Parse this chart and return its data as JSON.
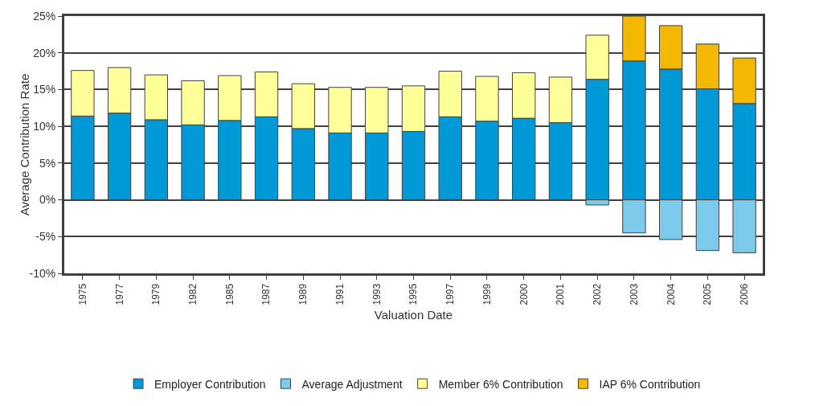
{
  "chart_data": {
    "type": "bar",
    "stacked": true,
    "xlabel": "Valuation Date",
    "ylabel": "Average Contribution Rate",
    "categories": [
      "1975",
      "1977",
      "1979",
      "1982",
      "1985",
      "1987",
      "1989",
      "1991",
      "1993",
      "1995",
      "1997",
      "1999",
      "2000",
      "2001",
      "2002",
      "2003",
      "2004",
      "2005",
      "2006"
    ],
    "series": [
      {
        "name": "Employer Contribution",
        "color": "#0099d8",
        "values": [
          11.4,
          11.8,
          10.9,
          10.2,
          10.8,
          11.3,
          9.7,
          9.1,
          9.1,
          9.3,
          11.3,
          10.7,
          11.1,
          10.5,
          16.4,
          18.9,
          17.8,
          15.1,
          13.1
        ]
      },
      {
        "name": "Average Adjustment",
        "color": "#7ccbec",
        "values": [
          null,
          null,
          null,
          null,
          null,
          null,
          null,
          null,
          null,
          null,
          null,
          null,
          null,
          null,
          -0.7,
          -4.5,
          -5.4,
          -6.9,
          -7.2
        ]
      },
      {
        "name": "Member 6% Contribution",
        "color": "#ffff99",
        "values": [
          6.2,
          6.2,
          6.1,
          6.0,
          6.1,
          6.1,
          6.1,
          6.2,
          6.2,
          6.2,
          6.2,
          6.1,
          6.2,
          6.2,
          6.0,
          null,
          null,
          null,
          null
        ]
      },
      {
        "name": "IAP 6% Contribution",
        "color": "#f5b800",
        "values": [
          null,
          null,
          null,
          null,
          null,
          null,
          null,
          null,
          null,
          null,
          null,
          null,
          null,
          null,
          null,
          6.1,
          5.9,
          6.1,
          6.2
        ]
      }
    ],
    "ylim": [
      -10,
      25
    ],
    "yticks": [
      {
        "value": -10,
        "label": "-10%"
      },
      {
        "value": -5,
        "label": "-5%"
      },
      {
        "value": 0,
        "label": "0%"
      },
      {
        "value": 5,
        "label": "5%"
      },
      {
        "value": 10,
        "label": "10%"
      },
      {
        "value": 15,
        "label": "15%"
      },
      {
        "value": 20,
        "label": "20%"
      },
      {
        "value": 25,
        "label": "25%"
      }
    ],
    "grid": "y",
    "legend": "bottom"
  }
}
